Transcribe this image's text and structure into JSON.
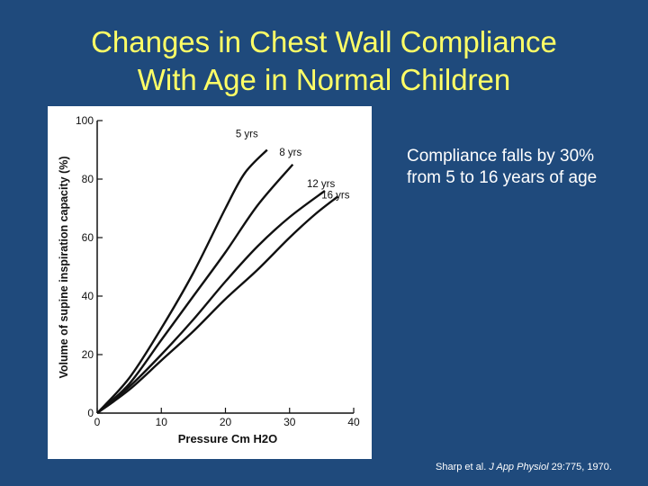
{
  "title": {
    "line1": "Changes in Chest Wall Compliance",
    "line2": "With Age in Normal Children"
  },
  "bullet_text": "Compliance falls by 30% from 5 to 16 years of age",
  "citation": {
    "authors": "Sharp et al.",
    "journal": "J App Physiol",
    "details": "29:775, 1970."
  },
  "colors": {
    "background": "#1f4a7c",
    "title": "#ffff66",
    "text": "#ffffff",
    "figure_bg": "#ffffff",
    "ink": "#111111"
  },
  "chart_data": {
    "type": "line",
    "title": "",
    "xlabel": "Pressure Cm H2O",
    "ylabel": "Volume of supine inspiration capacity (%)",
    "xlim": [
      0,
      40
    ],
    "ylim": [
      0,
      100
    ],
    "x_ticks": [
      0,
      10,
      20,
      30,
      40
    ],
    "x_tick_labels": [
      "0",
      "10",
      "20",
      "30",
      "40"
    ],
    "y_ticks": [
      0,
      20,
      40,
      60,
      80,
      100
    ],
    "y_tick_labels": [
      "0",
      "20",
      "40",
      "60",
      "80",
      "100"
    ],
    "series": [
      {
        "name": "5 yrs",
        "x": [
          0,
          5,
          10,
          15,
          20,
          23,
          26.5
        ],
        "y": [
          0,
          12,
          29,
          48,
          70,
          82,
          90
        ]
      },
      {
        "name": "8 yrs",
        "x": [
          0,
          5,
          10,
          15,
          20,
          25,
          30.5
        ],
        "y": [
          0,
          10,
          25,
          40,
          55,
          71,
          85
        ]
      },
      {
        "name": "12 yrs",
        "x": [
          0,
          5,
          10,
          15,
          20,
          25,
          30,
          35.5
        ],
        "y": [
          0,
          9,
          20,
          32,
          45,
          57,
          67,
          76
        ]
      },
      {
        "name": "16 yrs",
        "x": [
          0,
          5,
          10,
          15,
          20,
          25,
          30,
          34,
          37.5
        ],
        "y": [
          0,
          8,
          18,
          28,
          39,
          49,
          60,
          68,
          74
        ]
      }
    ]
  }
}
